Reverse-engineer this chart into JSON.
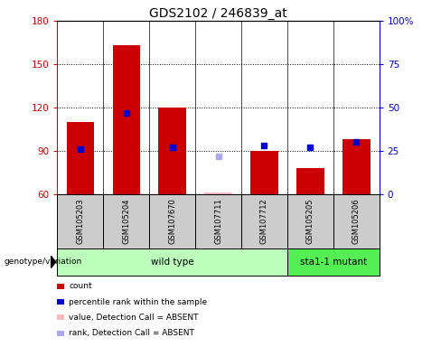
{
  "title": "GDS2102 / 246839_at",
  "samples": [
    "GSM105203",
    "GSM105204",
    "GSM107670",
    "GSM107711",
    "GSM107712",
    "GSM105205",
    "GSM105206"
  ],
  "bar_values": [
    110,
    163,
    120,
    61,
    90,
    78,
    98
  ],
  "bar_base": 60,
  "bar_color": "#cc0000",
  "absent_bar_indices": [
    3
  ],
  "absent_bar_color": "#ffbbbb",
  "rank_values": [
    26,
    47,
    27,
    null,
    28,
    27,
    30
  ],
  "rank_absent_values": [
    null,
    null,
    null,
    22,
    null,
    null,
    null
  ],
  "rank_color": "#0000cc",
  "rank_absent_color": "#aaaaee",
  "ylim": [
    60,
    180
  ],
  "yticks_left": [
    60,
    90,
    120,
    150,
    180
  ],
  "yticks_right": [
    0,
    25,
    50,
    75,
    100
  ],
  "groups": [
    {
      "label": "wild type",
      "indices": [
        0,
        1,
        2,
        3,
        4
      ],
      "color": "#bbffbb"
    },
    {
      "label": "sta1-1 mutant",
      "indices": [
        5,
        6
      ],
      "color": "#55ee55"
    }
  ],
  "group_header": "genotype/variation",
  "legend_items": [
    {
      "label": "count",
      "color": "#cc0000"
    },
    {
      "label": "percentile rank within the sample",
      "color": "#0000cc"
    },
    {
      "label": "value, Detection Call = ABSENT",
      "color": "#ffbbbb"
    },
    {
      "label": "rank, Detection Call = ABSENT",
      "color": "#aaaaee"
    }
  ],
  "background_color": "#ffffff",
  "cell_color": "#cccccc",
  "title_fontsize": 10
}
